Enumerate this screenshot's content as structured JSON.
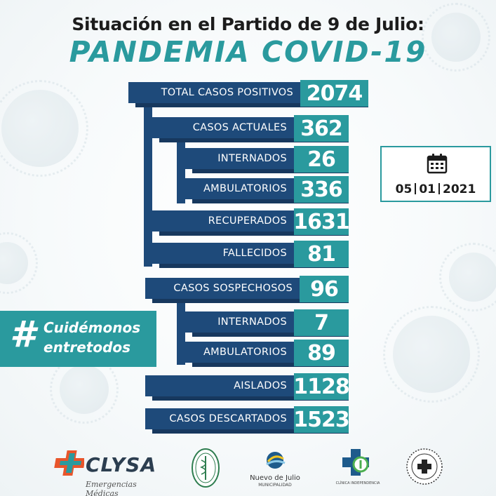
{
  "header": {
    "subtitle": "Situación en el Partido de 9 de Julio:",
    "title": "PANDEMIA COVID-19"
  },
  "stats": {
    "total_positivos": {
      "label": "TOTAL CASOS POSITIVOS",
      "value": "2074"
    },
    "casos_actuales": {
      "label": "CASOS ACTUALES",
      "value": "362"
    },
    "internados": {
      "label": "INTERNADOS",
      "value": "26"
    },
    "ambulatorios": {
      "label": "AMBULATORIOS",
      "value": "336"
    },
    "recuperados": {
      "label": "RECUPERADOS",
      "value": "1631"
    },
    "fallecidos": {
      "label": "FALLECIDOS",
      "value": "81"
    },
    "casos_sospechosos": {
      "label": "CASOS SOSPECHOSOS",
      "value": "96"
    },
    "sosp_internados": {
      "label": "INTERNADOS",
      "value": "7"
    },
    "sosp_ambulatorios": {
      "label": "AMBULATORIOS",
      "value": "89"
    },
    "aislados": {
      "label": "AISLADOS",
      "value": "1128"
    },
    "descartados": {
      "label": "CASOS DESCARTADOS",
      "value": "1523"
    }
  },
  "date": {
    "icon": "calendar-icon",
    "day": "05",
    "month": "01",
    "year": "2021"
  },
  "campaign": {
    "symbol": "#",
    "line1": "Cuidémonos",
    "line2": "entretodos"
  },
  "logos": {
    "clysa": {
      "name": "CLYSA",
      "tagline": "Emergencias Médicas"
    },
    "municipio": {
      "name": "Nuevo de Julio",
      "sub": "MUNICIPALIDAD"
    },
    "clinica": {
      "caption": "CLÍNICA INDEPENDENCIA"
    }
  },
  "colors": {
    "navy": "#1e4a7a",
    "teal": "#2a9a9e",
    "clysa_orange": "#e8552b"
  }
}
